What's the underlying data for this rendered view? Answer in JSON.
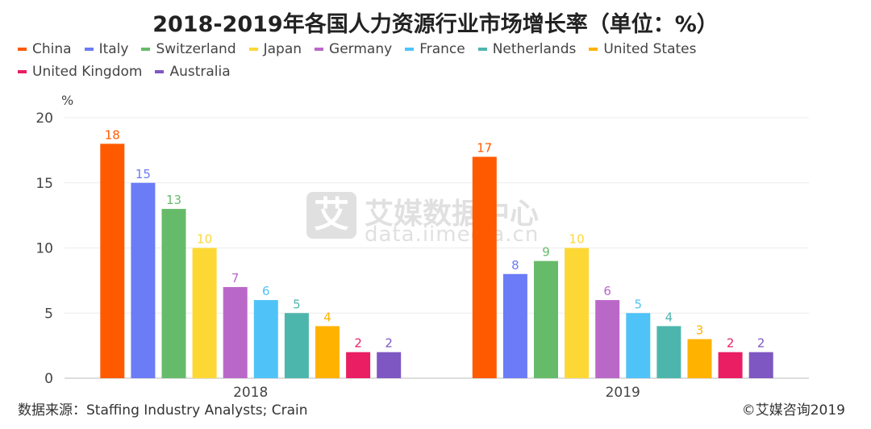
{
  "title": "2018-2019年各国人力资源行业市场增长率（单位：%）",
  "chart_data": {
    "type": "bar",
    "categories": [
      "2018",
      "2019"
    ],
    "series": [
      {
        "name": "China",
        "color": "#ff5a00",
        "values": [
          18,
          17
        ]
      },
      {
        "name": "Italy",
        "color": "#6b7cf6",
        "values": [
          15,
          8
        ]
      },
      {
        "name": "Switzerland",
        "color": "#66bb6a",
        "values": [
          13,
          9
        ]
      },
      {
        "name": "Japan",
        "color": "#fdd835",
        "values": [
          10,
          10
        ]
      },
      {
        "name": "Germany",
        "color": "#ba68c8",
        "values": [
          7,
          6
        ]
      },
      {
        "name": "France",
        "color": "#4fc3f7",
        "values": [
          6,
          5
        ]
      },
      {
        "name": "Netherlands",
        "color": "#4db6ac",
        "values": [
          5,
          4
        ]
      },
      {
        "name": "United States",
        "color": "#ffb300",
        "values": [
          4,
          3
        ]
      },
      {
        "name": "United Kingdom",
        "color": "#e91e63",
        "values": [
          2,
          2
        ]
      },
      {
        "name": "Australia",
        "color": "#7e57c2",
        "values": [
          2,
          2
        ]
      }
    ],
    "ylabel": "%",
    "ylim": [
      0,
      20
    ],
    "yticks": [
      0,
      5,
      10,
      15,
      20
    ],
    "grid": true,
    "legend_position": "top-left",
    "data_labels": true
  },
  "source": "数据来源：Staffing Industry Analysts; Crain",
  "copyright": "©艾媒咨询2019",
  "watermark": {
    "logo_char": "艾",
    "name": "艾媒数据中心",
    "url": "data.iimedia.cn"
  }
}
